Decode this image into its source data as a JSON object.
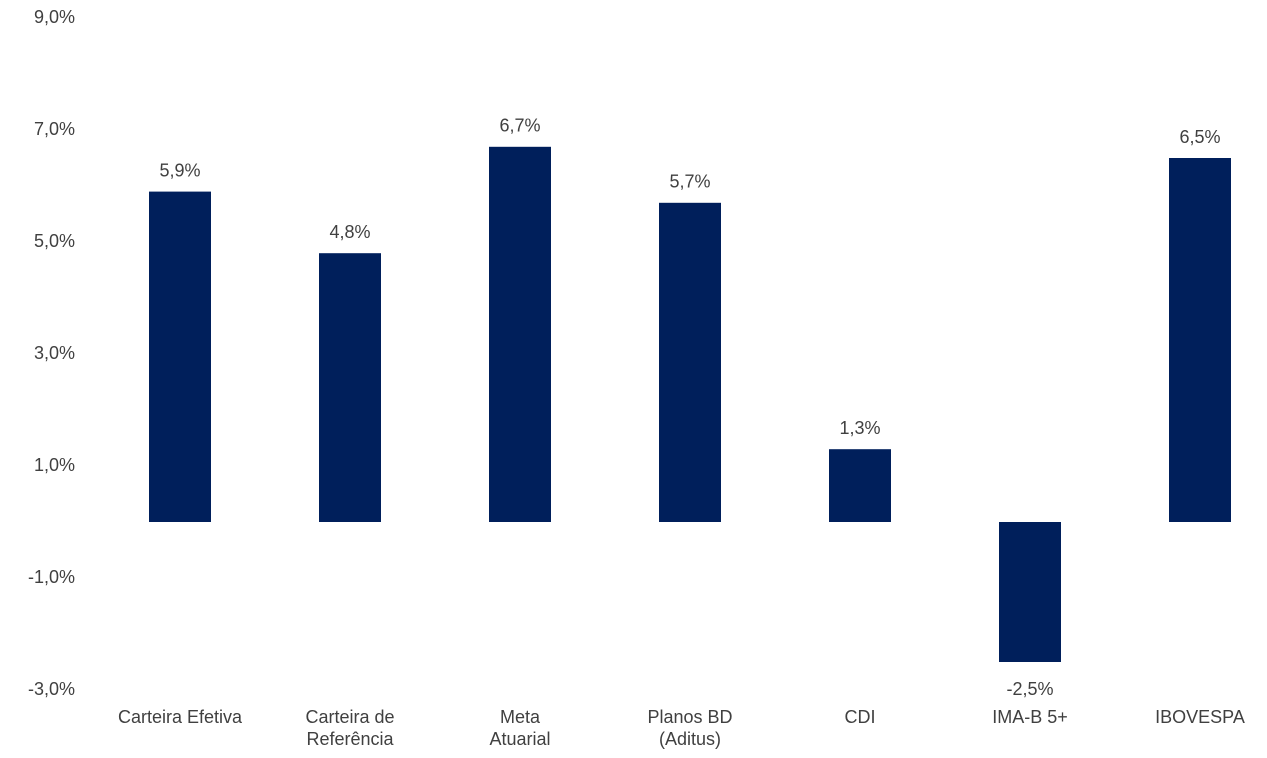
{
  "chart_data": {
    "type": "bar",
    "categories": [
      "Carteira Efetiva",
      "Carteira de\nReferência",
      "Meta\nAtuarial",
      "Planos BD\n(Aditus)",
      "CDI",
      "IMA-B 5+",
      "IBOVESPA"
    ],
    "values": [
      5.9,
      4.8,
      6.7,
      5.7,
      1.3,
      -2.5,
      6.5
    ],
    "value_labels": [
      "5,9%",
      "4,8%",
      "6,7%",
      "5,7%",
      "1,3%",
      "-2,5%",
      "6,5%"
    ],
    "color": "#001f5b",
    "ylim": [
      -3,
      9
    ],
    "yticks": [
      {
        "value": -3,
        "label": "-3,0%"
      },
      {
        "value": -1,
        "label": "-1,0%"
      },
      {
        "value": 1,
        "label": "1,0%"
      },
      {
        "value": 3,
        "label": "3,0%"
      },
      {
        "value": 5,
        "label": "5,0%"
      },
      {
        "value": 7,
        "label": "7,0%"
      },
      {
        "value": 9,
        "label": "9,0%"
      }
    ],
    "grid": false
  }
}
